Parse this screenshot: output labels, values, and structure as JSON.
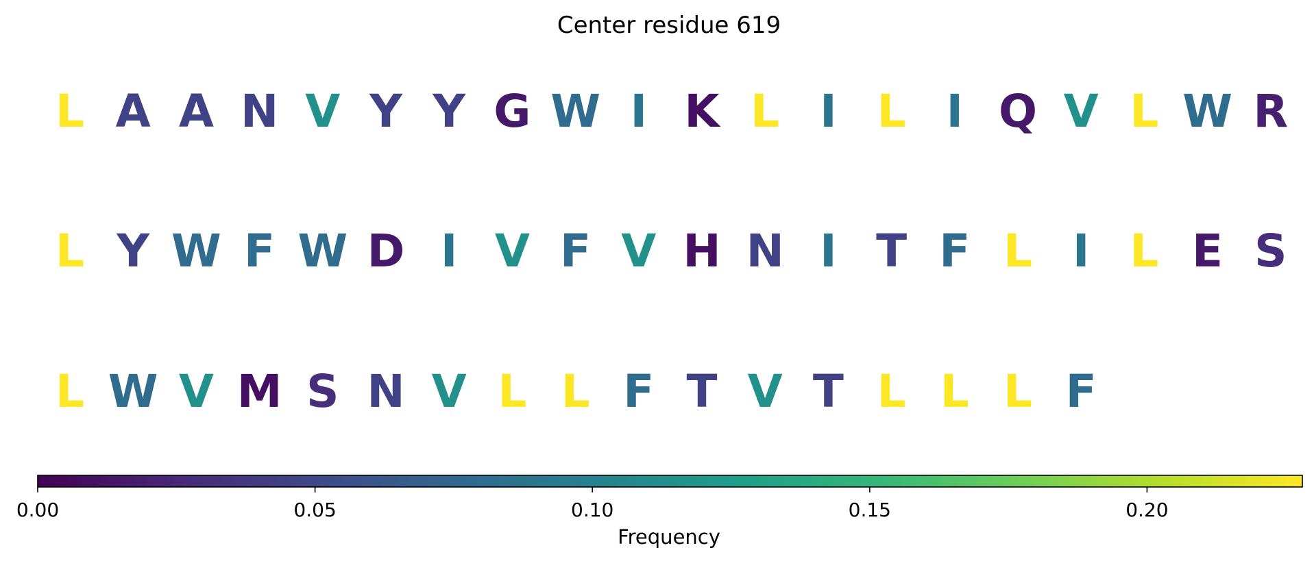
{
  "chart_data": {
    "type": "heatmap",
    "title": "Center residue 619",
    "rows": [
      {
        "residues": [
          "L",
          "A",
          "A",
          "N",
          "V",
          "Y",
          "Y",
          "G",
          "W",
          "I",
          "K",
          "L",
          "I",
          "L",
          "I",
          "Q",
          "V",
          "L",
          "W",
          "R"
        ],
        "frequencies": [
          0.228,
          0.045,
          0.045,
          0.045,
          0.115,
          0.045,
          0.045,
          0.015,
          0.08,
          0.09,
          0.01,
          0.228,
          0.09,
          0.228,
          0.09,
          0.015,
          0.115,
          0.228,
          0.08,
          0.02
        ]
      },
      {
        "residues": [
          "L",
          "Y",
          "W",
          "F",
          "W",
          "D",
          "I",
          "V",
          "F",
          "V",
          "H",
          "N",
          "I",
          "T",
          "F",
          "L",
          "I",
          "L",
          "E",
          "S"
        ],
        "frequencies": [
          0.228,
          0.045,
          0.08,
          0.08,
          0.08,
          0.015,
          0.09,
          0.115,
          0.08,
          0.115,
          0.01,
          0.045,
          0.09,
          0.045,
          0.08,
          0.228,
          0.09,
          0.228,
          0.015,
          0.03
        ]
      },
      {
        "residues": [
          "L",
          "W",
          "V",
          "M",
          "S",
          "N",
          "V",
          "L",
          "L",
          "F",
          "T",
          "V",
          "T",
          "L",
          "L",
          "L",
          "F"
        ],
        "frequencies": [
          0.228,
          0.08,
          0.115,
          0.01,
          0.03,
          0.045,
          0.115,
          0.228,
          0.228,
          0.08,
          0.045,
          0.115,
          0.045,
          0.228,
          0.228,
          0.228,
          0.08
        ]
      }
    ],
    "colorbar": {
      "label": "Frequency",
      "range": [
        0,
        0.228
      ],
      "ticks": [
        0.0,
        0.05,
        0.1,
        0.15,
        0.2
      ],
      "tick_labels": [
        "0.00",
        "0.05",
        "0.10",
        "0.15",
        "0.20"
      ],
      "colormap": "viridis",
      "colormap_stops": [
        "#440154",
        "#482878",
        "#3e4989",
        "#31688e",
        "#26828e",
        "#1f9e89",
        "#35b779",
        "#6ece58",
        "#b5de2b",
        "#fde725"
      ]
    }
  }
}
